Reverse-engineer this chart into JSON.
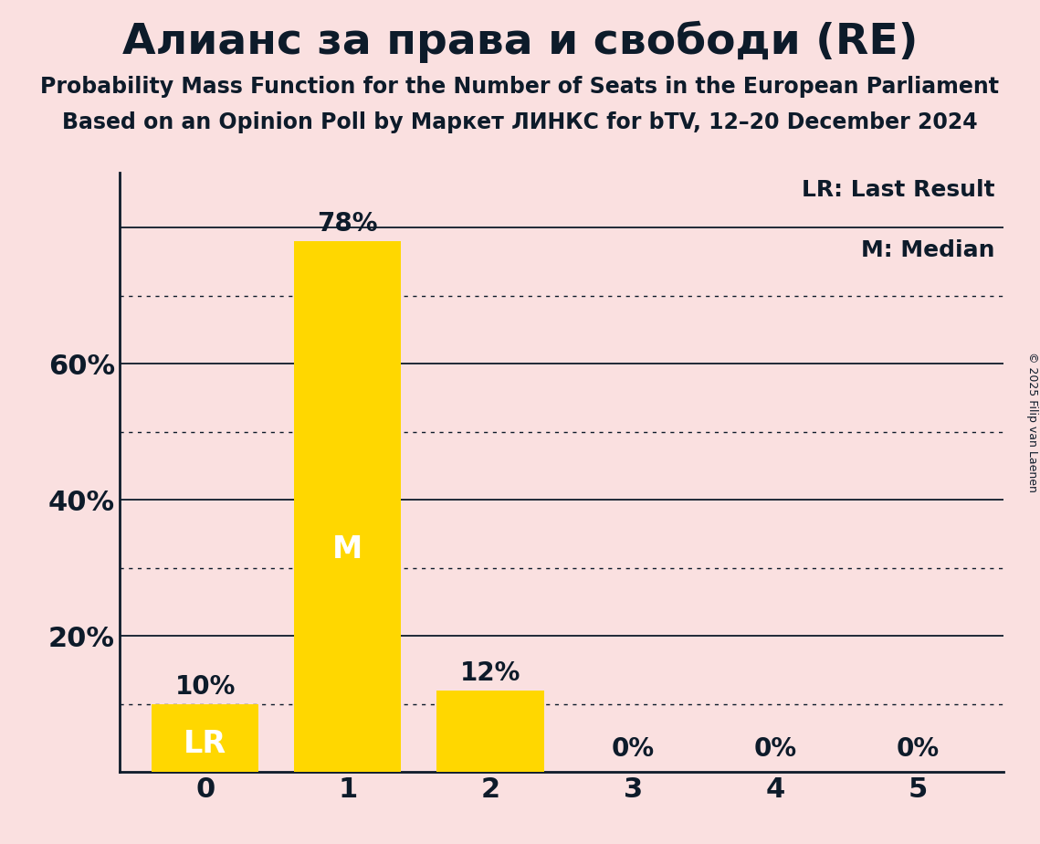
{
  "title": "Алианс за права и свободи (RE)",
  "subtitle1": "Probability Mass Function for the Number of Seats in the European Parliament",
  "subtitle2": "Based on an Opinion Poll by Маркет ЛИНКС for bTV, 12–20 December 2024",
  "copyright": "© 2025 Filip van Laenen",
  "categories": [
    0,
    1,
    2,
    3,
    4,
    5
  ],
  "values": [
    0.1,
    0.78,
    0.12,
    0.0,
    0.0,
    0.0
  ],
  "bar_color": "#FFD700",
  "background_color": "#FAE0E0",
  "text_color": "#0d1b2a",
  "bar_labels": [
    "10%",
    "78%",
    "12%",
    "0%",
    "0%",
    "0%"
  ],
  "bar_annotations": [
    {
      "text": "LR",
      "x": 0,
      "color": "white"
    },
    {
      "text": "M",
      "x": 1,
      "color": "white"
    }
  ],
  "legend_lines": [
    "LR: Last Result",
    "M: Median"
  ],
  "solid_gridlines": [
    0.2,
    0.4,
    0.6,
    0.8
  ],
  "dotted_gridlines": [
    0.1,
    0.3,
    0.5,
    0.7
  ],
  "yticks": [
    0.2,
    0.4,
    0.6
  ],
  "ytick_labels": [
    "20%",
    "40%",
    "60%"
  ],
  "ylim": [
    0,
    0.88
  ],
  "title_fontsize": 34,
  "subtitle_fontsize": 17,
  "bar_label_fontsize": 20,
  "annotation_fontsize": 24,
  "ytick_fontsize": 22,
  "xtick_fontsize": 22,
  "legend_fontsize": 18,
  "copyright_fontsize": 9
}
